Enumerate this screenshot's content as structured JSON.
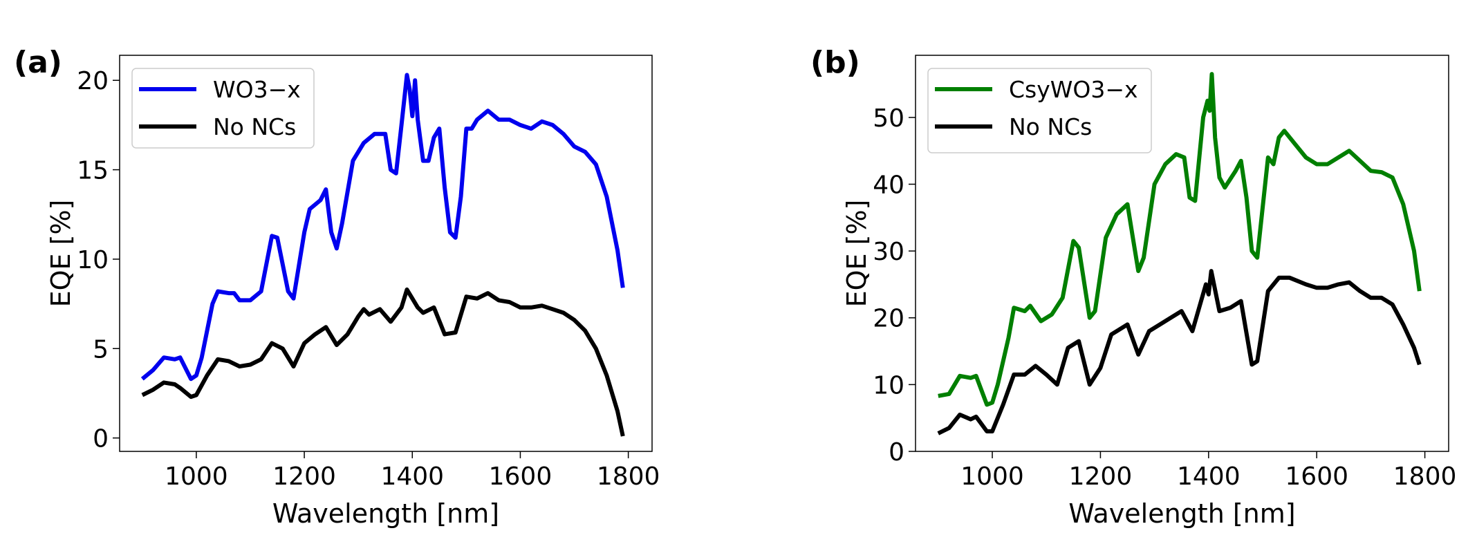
{
  "chart_data": [
    {
      "type": "line",
      "panel_label": "(a)",
      "xlabel": "Wavelength [nm]",
      "ylabel": "EQE [%]",
      "xlim": [
        858,
        1844
      ],
      "ylim": [
        -0.75,
        21.4
      ],
      "xticks": [
        1000,
        1200,
        1400,
        1600,
        1800
      ],
      "yticks": [
        0,
        5,
        10,
        15,
        20
      ],
      "legend": "upper left",
      "series": [
        {
          "name": "WO3−x",
          "color": "#0000ee",
          "x": [
            900,
            920,
            940,
            960,
            970,
            990,
            1000,
            1010,
            1030,
            1040,
            1060,
            1070,
            1080,
            1100,
            1120,
            1140,
            1150,
            1170,
            1180,
            1200,
            1210,
            1230,
            1240,
            1250,
            1260,
            1270,
            1290,
            1310,
            1330,
            1350,
            1360,
            1370,
            1380,
            1390,
            1395,
            1400,
            1405,
            1410,
            1420,
            1430,
            1440,
            1450,
            1460,
            1470,
            1480,
            1490,
            1500,
            1510,
            1520,
            1540,
            1560,
            1580,
            1600,
            1620,
            1640,
            1660,
            1680,
            1700,
            1720,
            1740,
            1760,
            1780,
            1790
          ],
          "values": [
            3.3,
            3.8,
            4.5,
            4.4,
            4.5,
            3.3,
            3.5,
            4.5,
            7.5,
            8.2,
            8.1,
            8.1,
            7.7,
            7.7,
            8.2,
            11.3,
            11.2,
            8.2,
            7.8,
            11.5,
            12.8,
            13.3,
            13.9,
            11.5,
            10.6,
            12.0,
            15.5,
            16.5,
            17.0,
            17.0,
            15.0,
            14.8,
            17.5,
            20.3,
            19.5,
            18.0,
            20.0,
            17.8,
            15.5,
            15.5,
            16.8,
            17.3,
            14.0,
            11.5,
            11.2,
            13.5,
            17.3,
            17.3,
            17.8,
            18.3,
            17.8,
            17.8,
            17.5,
            17.3,
            17.7,
            17.5,
            17.0,
            16.3,
            16.0,
            15.3,
            13.5,
            10.5,
            8.4
          ]
        },
        {
          "name": "No NCs",
          "color": "#000000",
          "x": [
            900,
            920,
            940,
            960,
            970,
            990,
            1000,
            1020,
            1040,
            1060,
            1080,
            1100,
            1120,
            1140,
            1160,
            1180,
            1200,
            1220,
            1240,
            1260,
            1280,
            1300,
            1310,
            1320,
            1340,
            1360,
            1380,
            1390,
            1400,
            1410,
            1420,
            1440,
            1460,
            1480,
            1500,
            1520,
            1540,
            1560,
            1580,
            1600,
            1620,
            1640,
            1660,
            1680,
            1700,
            1720,
            1740,
            1760,
            1780,
            1790
          ],
          "values": [
            2.4,
            2.7,
            3.1,
            3.0,
            2.8,
            2.3,
            2.4,
            3.5,
            4.4,
            4.3,
            4.0,
            4.1,
            4.4,
            5.3,
            5.0,
            4.0,
            5.3,
            5.8,
            6.2,
            5.2,
            5.8,
            6.8,
            7.2,
            6.9,
            7.2,
            6.5,
            7.3,
            8.3,
            7.8,
            7.3,
            7.0,
            7.3,
            5.8,
            5.9,
            7.9,
            7.8,
            8.1,
            7.7,
            7.6,
            7.3,
            7.3,
            7.4,
            7.2,
            7.0,
            6.6,
            6.0,
            5.0,
            3.5,
            1.5,
            0.1
          ]
        }
      ]
    },
    {
      "type": "line",
      "panel_label": "(b)",
      "xlabel": "Wavelength [nm]",
      "ylabel": "EQE [%]",
      "xlim": [
        858,
        1844
      ],
      "ylim": [
        0,
        59.3
      ],
      "xticks": [
        1000,
        1200,
        1400,
        1600,
        1800
      ],
      "yticks": [
        0,
        10,
        20,
        30,
        40,
        50
      ],
      "legend": "upper left",
      "series": [
        {
          "name": "CsyWO3−x",
          "color": "#007f00",
          "x": [
            900,
            920,
            940,
            960,
            970,
            990,
            1000,
            1010,
            1030,
            1040,
            1060,
            1070,
            1090,
            1110,
            1130,
            1150,
            1160,
            1180,
            1190,
            1210,
            1230,
            1250,
            1260,
            1270,
            1280,
            1300,
            1320,
            1340,
            1355,
            1365,
            1375,
            1390,
            1398,
            1402,
            1406,
            1412,
            1420,
            1430,
            1450,
            1460,
            1470,
            1480,
            1490,
            1510,
            1520,
            1530,
            1540,
            1560,
            1580,
            1600,
            1620,
            1640,
            1660,
            1680,
            1700,
            1720,
            1740,
            1760,
            1780,
            1790
          ],
          "values": [
            8.3,
            8.6,
            11.3,
            11.0,
            11.3,
            7.0,
            7.3,
            10.0,
            17.0,
            21.5,
            21.0,
            21.8,
            19.5,
            20.5,
            23.0,
            31.5,
            30.5,
            20.0,
            21.0,
            32.0,
            35.5,
            37.0,
            32.0,
            27.0,
            29.0,
            40.0,
            43.0,
            44.5,
            44.0,
            38.0,
            37.5,
            50.0,
            52.5,
            51.0,
            56.5,
            47.0,
            41.0,
            39.5,
            42.0,
            43.5,
            38.0,
            30.0,
            29.0,
            44.0,
            43.0,
            47.0,
            48.0,
            46.0,
            44.0,
            43.0,
            43.0,
            44.0,
            45.0,
            43.5,
            42.0,
            41.8,
            41.0,
            37.0,
            30.0,
            24.0
          ]
        },
        {
          "name": "No NCs",
          "color": "#000000",
          "x": [
            900,
            920,
            940,
            960,
            970,
            990,
            1000,
            1020,
            1040,
            1060,
            1080,
            1100,
            1120,
            1140,
            1160,
            1180,
            1200,
            1220,
            1250,
            1270,
            1290,
            1310,
            1330,
            1350,
            1370,
            1395,
            1400,
            1405,
            1420,
            1440,
            1460,
            1480,
            1490,
            1510,
            1530,
            1550,
            1580,
            1600,
            1620,
            1640,
            1660,
            1680,
            1700,
            1720,
            1740,
            1760,
            1780,
            1790
          ],
          "values": [
            2.7,
            3.5,
            5.5,
            4.8,
            5.2,
            3.0,
            3.0,
            7.0,
            11.5,
            11.5,
            12.8,
            11.5,
            10.0,
            15.5,
            16.5,
            10.0,
            12.5,
            17.5,
            19.0,
            14.5,
            18.0,
            19.0,
            20.0,
            21.0,
            18.0,
            25.0,
            23.5,
            27.0,
            21.0,
            21.5,
            22.5,
            13.0,
            13.5,
            24.0,
            26.0,
            26.0,
            25.0,
            24.5,
            24.5,
            25.0,
            25.3,
            24.0,
            23.0,
            23.0,
            22.0,
            19.0,
            15.5,
            13.0
          ]
        }
      ]
    }
  ]
}
